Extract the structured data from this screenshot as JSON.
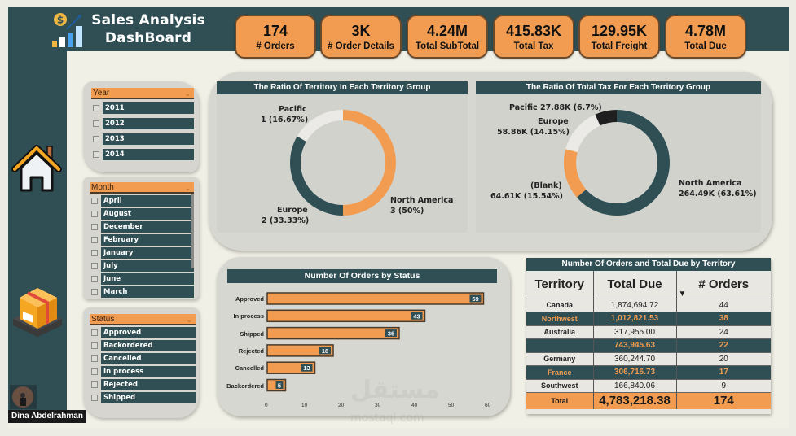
{
  "header": {
    "title_line1": "Sales Analysis",
    "title_line2": "DashBoard"
  },
  "kpis": [
    {
      "value": "174",
      "label": "# Orders"
    },
    {
      "value": "3K",
      "label": "# Order Details"
    },
    {
      "value": "4.24M",
      "label": "Total SubTotal"
    },
    {
      "value": "415.83K",
      "label": "Total Tax"
    },
    {
      "value": "129.95K",
      "label": "Total Freight"
    },
    {
      "value": "4.78M",
      "label": "Total Due"
    }
  ],
  "nav": {
    "home_icon": "home-icon",
    "product_icon": "package-box-icon"
  },
  "filters": {
    "year": {
      "title": "Year",
      "options": [
        "2011",
        "2012",
        "2013",
        "2014"
      ]
    },
    "month": {
      "title": "Month",
      "options": [
        "April",
        "August",
        "December",
        "February",
        "January",
        "July",
        "June",
        "March"
      ]
    },
    "status": {
      "title": "Status",
      "options": [
        "Approved",
        "Backordered",
        "Cancelled",
        "In process",
        "Rejected",
        "Shipped"
      ]
    }
  },
  "colors": {
    "accent": "#f19c50",
    "dark": "#2f4f55",
    "light_slice": "#ebeae6",
    "black_slice": "#1f1f1f"
  },
  "chart_data": [
    {
      "type": "pie",
      "title": "The Ratio Of Territory In Each Territory Group",
      "donut": true,
      "slices": [
        {
          "label": "North America",
          "value": 3,
          "pct": "50%",
          "text": "3 (50%)",
          "color": "#f19c50"
        },
        {
          "label": "Europe",
          "value": 2,
          "pct": "33.33%",
          "text": "2 (33.33%)",
          "color": "#2f4f55"
        },
        {
          "label": "Pacific",
          "value": 1,
          "pct": "16.67%",
          "text": "1 (16.67%)",
          "color": "#ebeae6"
        }
      ]
    },
    {
      "type": "pie",
      "title": "The Ratio Of Total Tax For Each Territory Group",
      "donut": true,
      "slices": [
        {
          "label": "North America",
          "value": 264.49,
          "pct": "63.61%",
          "text": "264.49K (63.61%)",
          "color": "#2f4f55"
        },
        {
          "label": "(Blank)",
          "value": 64.61,
          "pct": "15.54%",
          "text": "64.61K (15.54%)",
          "color": "#f19c50"
        },
        {
          "label": "Europe",
          "value": 58.86,
          "pct": "14.15%",
          "text": "58.86K (14.15%)",
          "color": "#ebeae6"
        },
        {
          "label": "Pacific",
          "value": 27.88,
          "pct": "6.7%",
          "text": "27.88K (6.7%)",
          "color": "#1f1f1f"
        }
      ]
    },
    {
      "type": "bar",
      "orientation": "horizontal",
      "title": "Number Of Orders by Status",
      "categories": [
        "Approved",
        "In process",
        "Shipped",
        "Rejected",
        "Cancelled",
        "Backordered"
      ],
      "values": [
        59,
        43,
        36,
        18,
        13,
        5
      ],
      "xlim": [
        0,
        60
      ],
      "xticks": [
        "0",
        "10",
        "20",
        "30",
        "40",
        "50",
        "60"
      ],
      "xlabel": "",
      "ylabel": ""
    },
    {
      "type": "table",
      "title": "Number Of Orders and Total Due by Territory",
      "columns": [
        "Territory",
        "Total Due",
        "# Orders"
      ],
      "sort_indicator": "▼",
      "rows": [
        {
          "territory": "Canada",
          "total_due": "1,874,694.72",
          "orders": "44",
          "highlight": false
        },
        {
          "territory": "Northwest",
          "total_due": "1,012,821.53",
          "orders": "38",
          "highlight": true
        },
        {
          "territory": "Australia",
          "total_due": "317,955.00",
          "orders": "24",
          "highlight": false
        },
        {
          "territory": "",
          "total_due": "743,945.63",
          "orders": "22",
          "highlight": true
        },
        {
          "territory": "Germany",
          "total_due": "360,244.70",
          "orders": "20",
          "highlight": false
        },
        {
          "territory": "France",
          "total_due": "306,716.73",
          "orders": "17",
          "highlight": true
        },
        {
          "territory": "Southwest",
          "total_due": "166,840.06",
          "orders": "9",
          "highlight": false
        }
      ],
      "total": {
        "territory": "Total",
        "total_due": "4,783,218.38",
        "orders": "174"
      }
    }
  ],
  "watermark": {
    "arabic": "مستقل",
    "latin": "mostaql.com"
  },
  "user": {
    "name": "Dina Abdelrahman"
  }
}
